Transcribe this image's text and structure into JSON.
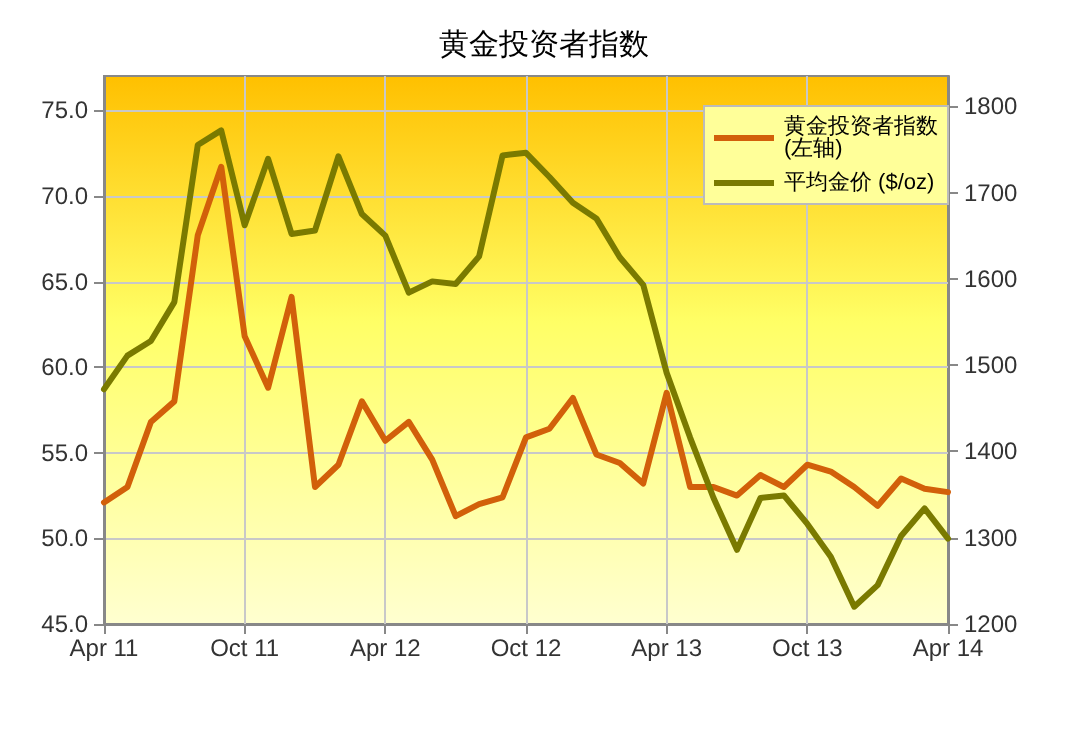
{
  "chart_data": {
    "type": "line",
    "title": "黄金投资者指数",
    "categories": [
      "Apr 11",
      null,
      null,
      null,
      null,
      null,
      "Oct 11",
      null,
      null,
      null,
      null,
      null,
      "Apr 12",
      null,
      null,
      null,
      null,
      null,
      "Oct 12",
      null,
      null,
      null,
      null,
      null,
      "Apr 13",
      null,
      null,
      null,
      null,
      null,
      "Oct 13",
      null,
      null,
      null,
      null,
      null,
      "Apr 14"
    ],
    "series": [
      {
        "name": "黄金投资者指数\n(左轴)",
        "color": "#d2600a",
        "values": [
          52.1,
          53.0,
          56.8,
          58.0,
          67.7,
          71.7,
          61.8,
          58.8,
          64.1,
          53.0,
          54.3,
          58.0,
          55.7,
          56.8,
          54.6,
          51.3,
          52.0,
          52.4,
          55.9,
          56.4,
          58.2,
          54.9,
          54.4,
          53.2,
          58.5,
          53.0,
          53.0,
          52.5,
          53.7,
          53.0,
          54.3,
          53.9,
          53.0,
          51.9,
          53.5,
          52.9,
          52.7
        ]
      },
      {
        "name": "平均金价 ($/oz)",
        "color": "#7a7a00",
        "axis": "y2",
        "values": [
          1472,
          1511,
          1528,
          1573,
          1755,
          1772,
          1662,
          1739,
          1652,
          1656,
          1742,
          1675,
          1650,
          1584,
          1597,
          1594,
          1626,
          1743,
          1746,
          1718,
          1688,
          1670,
          1625,
          1593,
          1491,
          1416,
          1346,
          1286,
          1346,
          1349,
          1316,
          1278,
          1220,
          1245,
          1302,
          1334,
          1299
        ]
      }
    ],
    "ylim": [
      45,
      77
    ],
    "yticks": [
      {
        "value": 45,
        "label": "45.0"
      },
      {
        "value": 50,
        "label": "50.0"
      },
      {
        "value": 55,
        "label": "55.0"
      },
      {
        "value": 60,
        "label": "60.0"
      },
      {
        "value": 65,
        "label": "65.0"
      },
      {
        "value": 70,
        "label": "70.0"
      },
      {
        "value": 75,
        "label": "75.0"
      }
    ],
    "y2lim": [
      1200,
      1835
    ],
    "y2ticks": [
      1200,
      1300,
      1400,
      1500,
      1600,
      1700,
      1800
    ],
    "grid": true,
    "legend": "top right",
    "marker": "none",
    "line_style": "solid"
  }
}
